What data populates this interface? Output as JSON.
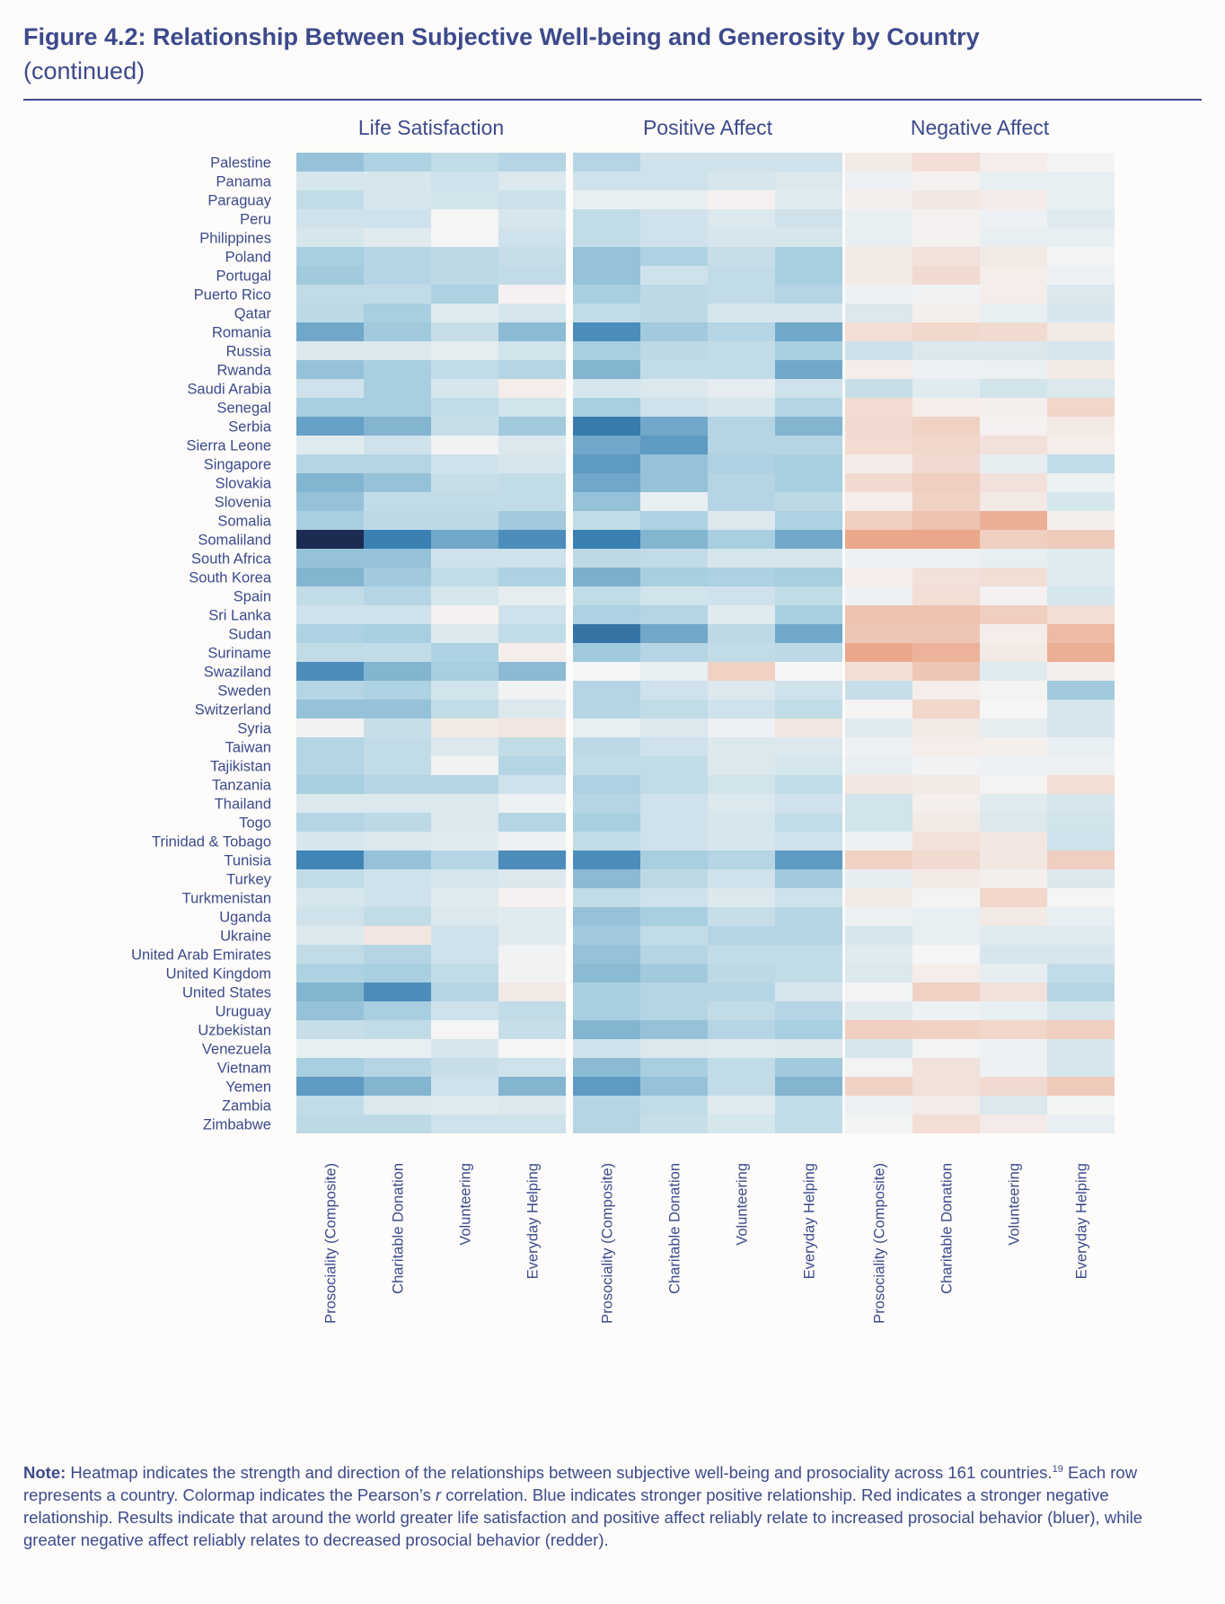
{
  "figure": {
    "title": "Figure 4.2: Relationship Between Subjective Well-being and Generosity by Country",
    "subtitle": "(continued)"
  },
  "note": {
    "label": "Note:",
    "text_1": " Heatmap indicates the strength and direction of the relationships between subjective well-being and prosociality across 161 countries.",
    "footnote_ref": "19",
    "text_2": " Each row represents a country. Colormap indicates the Pearson’s ",
    "r_symbol": "r",
    "text_3": " correlation. Blue indicates stronger positive relationship. Red indicates a stronger negative relationship. Results indicate that around the world greater life satisfaction and positive affect reliably relate to increased prosocial behavior (bluer), while greater negative affect reliably relates to decreased prosocial behavior (redder)."
  },
  "colors": {
    "text": "#3c4a8c",
    "negative_strong": "#e99d7d",
    "neutral": "#f5f5f5",
    "positive_strong": "#1c2b52",
    "positive_mid": "#3a80b3"
  },
  "chart_data": {
    "type": "heatmap",
    "value_meaning": "Pearson's r (blue = positive, red = negative)",
    "color_range": [
      -0.5,
      1.0
    ],
    "panels": [
      "Life Satisfaction",
      "Positive Affect",
      "Negative Affect"
    ],
    "columns": [
      "Prosociality (Composite)",
      "Charitable Donation",
      "Volunteering",
      "Everyday Helping"
    ],
    "rows": [
      "Palestine",
      "Panama",
      "Paraguay",
      "Peru",
      "Philippines",
      "Poland",
      "Portugal",
      "Puerto Rico",
      "Qatar",
      "Romania",
      "Russia",
      "Rwanda",
      "Saudi Arabia",
      "Senegal",
      "Serbia",
      "Sierra Leone",
      "Singapore",
      "Slovakia",
      "Slovenia",
      "Somalia",
      "Somaliland",
      "South Africa",
      "South Korea",
      "Spain",
      "Sri Lanka",
      "Sudan",
      "Suriname",
      "Swaziland",
      "Sweden",
      "Switzerland",
      "Syria",
      "Taiwan",
      "Tajikistan",
      "Tanzania",
      "Thailand",
      "Togo",
      "Trinidad & Tobago",
      "Tunisia",
      "Turkey",
      "Turkmenistan",
      "Uganda",
      "Ukraine",
      "United Arab Emirates",
      "United Kingdom",
      "United States",
      "Uruguay",
      "Uzbekistan",
      "Venezuela",
      "Vietnam",
      "Yemen",
      "Zambia",
      "Zimbabwe"
    ],
    "values": [
      [
        [
          0.35,
          0.28,
          0.2,
          0.25
        ],
        [
          0.25,
          0.15,
          0.15,
          0.15
        ],
        [
          -0.06,
          -0.12,
          -0.04,
          -0.01
        ]
      ],
      [
        [
          0.12,
          0.12,
          0.15,
          0.1
        ],
        [
          0.15,
          0.15,
          0.12,
          0.1
        ],
        [
          0.03,
          -0.02,
          0.05,
          0.05
        ]
      ],
      [
        [
          0.2,
          0.12,
          0.14,
          0.16
        ],
        [
          0.05,
          0.05,
          -0.02,
          0.08
        ],
        [
          -0.03,
          -0.07,
          -0.05,
          0.05
        ]
      ],
      [
        [
          0.15,
          0.15,
          0.0,
          0.12
        ],
        [
          0.2,
          0.15,
          0.1,
          0.15
        ],
        [
          0.05,
          -0.02,
          0.03,
          0.08
        ]
      ],
      [
        [
          0.12,
          0.08,
          0.0,
          0.15
        ],
        [
          0.2,
          0.15,
          0.12,
          0.12
        ],
        [
          0.05,
          -0.02,
          0.05,
          0.05
        ]
      ],
      [
        [
          0.3,
          0.25,
          0.22,
          0.18
        ],
        [
          0.35,
          0.28,
          0.18,
          0.3
        ],
        [
          -0.06,
          -0.1,
          -0.06,
          -0.01
        ]
      ],
      [
        [
          0.32,
          0.25,
          0.22,
          0.2
        ],
        [
          0.35,
          0.15,
          0.2,
          0.3
        ],
        [
          -0.06,
          -0.14,
          -0.04,
          0.03
        ]
      ],
      [
        [
          0.2,
          0.2,
          0.28,
          -0.02
        ],
        [
          0.3,
          0.22,
          0.2,
          0.25
        ],
        [
          0.03,
          0.02,
          -0.04,
          0.1
        ]
      ],
      [
        [
          0.22,
          0.3,
          0.08,
          0.12
        ],
        [
          0.2,
          0.22,
          0.12,
          0.12
        ],
        [
          0.1,
          -0.03,
          0.05,
          0.12
        ]
      ],
      [
        [
          0.45,
          0.32,
          0.18,
          0.38
        ],
        [
          0.55,
          0.32,
          0.25,
          0.45
        ],
        [
          -0.12,
          -0.15,
          -0.14,
          -0.06
        ]
      ],
      [
        [
          0.1,
          0.1,
          0.06,
          0.14
        ],
        [
          0.3,
          0.22,
          0.2,
          0.3
        ],
        [
          0.16,
          0.1,
          0.1,
          0.12
        ]
      ],
      [
        [
          0.35,
          0.3,
          0.2,
          0.25
        ],
        [
          0.4,
          0.2,
          0.2,
          0.45
        ],
        [
          -0.04,
          0.03,
          0.04,
          -0.06
        ]
      ],
      [
        [
          0.15,
          0.3,
          0.12,
          -0.04
        ],
        [
          0.12,
          0.1,
          0.06,
          0.15
        ],
        [
          0.18,
          0.08,
          0.14,
          0.1
        ]
      ],
      [
        [
          0.3,
          0.3,
          0.2,
          0.14
        ],
        [
          0.3,
          0.15,
          0.12,
          0.25
        ],
        [
          -0.13,
          -0.04,
          -0.03,
          -0.16
        ]
      ],
      [
        [
          0.48,
          0.4,
          0.18,
          0.32
        ],
        [
          0.62,
          0.45,
          0.25,
          0.4
        ],
        [
          -0.14,
          -0.18,
          -0.02,
          -0.06
        ]
      ],
      [
        [
          0.08,
          0.15,
          0.02,
          0.1
        ],
        [
          0.45,
          0.5,
          0.25,
          0.25
        ],
        [
          -0.13,
          -0.16,
          -0.1,
          -0.04
        ]
      ],
      [
        [
          0.25,
          0.25,
          0.15,
          0.12
        ],
        [
          0.5,
          0.35,
          0.28,
          0.3
        ],
        [
          -0.05,
          -0.14,
          0.06,
          0.2
        ]
      ],
      [
        [
          0.4,
          0.35,
          0.18,
          0.2
        ],
        [
          0.45,
          0.35,
          0.25,
          0.3
        ],
        [
          -0.14,
          -0.2,
          -0.1,
          0.03
        ]
      ],
      [
        [
          0.35,
          0.2,
          0.2,
          0.2
        ],
        [
          0.35,
          0.05,
          0.25,
          0.22
        ],
        [
          -0.04,
          -0.18,
          -0.06,
          0.12
        ]
      ],
      [
        [
          0.3,
          0.22,
          0.22,
          0.32
        ],
        [
          0.2,
          0.28,
          0.1,
          0.28
        ],
        [
          -0.2,
          -0.26,
          -0.36,
          -0.03
        ]
      ],
      [
        [
          0.95,
          0.6,
          0.45,
          0.55
        ],
        [
          0.6,
          0.4,
          0.3,
          0.45
        ],
        [
          -0.4,
          -0.4,
          -0.2,
          -0.22
        ]
      ],
      [
        [
          0.35,
          0.35,
          0.15,
          0.15
        ],
        [
          0.22,
          0.2,
          0.12,
          0.12
        ],
        [
          0.03,
          0.03,
          0.05,
          0.08
        ]
      ],
      [
        [
          0.4,
          0.32,
          0.2,
          0.28
        ],
        [
          0.42,
          0.3,
          0.28,
          0.3
        ],
        [
          -0.04,
          -0.1,
          -0.12,
          0.08
        ]
      ],
      [
        [
          0.2,
          0.25,
          0.12,
          0.06
        ],
        [
          0.2,
          0.14,
          0.15,
          0.2
        ],
        [
          0.03,
          -0.12,
          -0.02,
          0.12
        ]
      ],
      [
        [
          0.15,
          0.15,
          -0.02,
          0.15
        ],
        [
          0.28,
          0.25,
          0.08,
          0.3
        ],
        [
          -0.26,
          -0.26,
          -0.2,
          -0.12
        ]
      ],
      [
        [
          0.28,
          0.3,
          0.1,
          0.2
        ],
        [
          0.65,
          0.45,
          0.22,
          0.45
        ],
        [
          -0.24,
          -0.24,
          -0.04,
          -0.3
        ]
      ],
      [
        [
          0.2,
          0.2,
          0.28,
          -0.04
        ],
        [
          0.32,
          0.25,
          0.2,
          0.22
        ],
        [
          -0.4,
          -0.34,
          -0.06,
          -0.36
        ]
      ],
      [
        [
          0.55,
          0.4,
          0.3,
          0.38
        ],
        [
          0.0,
          0.05,
          -0.18,
          0.0
        ],
        [
          -0.12,
          -0.24,
          0.08,
          -0.03
        ]
      ],
      [
        [
          0.25,
          0.28,
          0.14,
          0.02
        ],
        [
          0.25,
          0.15,
          0.1,
          0.15
        ],
        [
          0.18,
          -0.04,
          -0.01,
          0.32
        ]
      ],
      [
        [
          0.35,
          0.35,
          0.2,
          0.1
        ],
        [
          0.25,
          0.2,
          0.15,
          0.2
        ],
        [
          -0.01,
          -0.16,
          0.0,
          0.12
        ]
      ],
      [
        [
          0.02,
          0.18,
          -0.06,
          -0.08
        ],
        [
          0.05,
          0.1,
          0.03,
          -0.08
        ],
        [
          0.08,
          -0.06,
          0.06,
          0.12
        ]
      ],
      [
        [
          0.25,
          0.2,
          0.1,
          0.2
        ],
        [
          0.22,
          0.15,
          0.1,
          0.1
        ],
        [
          0.03,
          -0.04,
          -0.03,
          0.05
        ]
      ],
      [
        [
          0.25,
          0.2,
          0.02,
          0.25
        ],
        [
          0.2,
          0.2,
          0.1,
          0.12
        ],
        [
          0.05,
          0.02,
          0.03,
          0.03
        ]
      ],
      [
        [
          0.3,
          0.25,
          0.25,
          0.15
        ],
        [
          0.28,
          0.2,
          0.14,
          0.2
        ],
        [
          -0.08,
          -0.06,
          -0.01,
          -0.12
        ]
      ],
      [
        [
          0.1,
          0.1,
          0.1,
          0.03
        ],
        [
          0.25,
          0.15,
          0.1,
          0.15
        ],
        [
          0.14,
          -0.03,
          0.08,
          0.12
        ]
      ],
      [
        [
          0.25,
          0.22,
          0.1,
          0.25
        ],
        [
          0.3,
          0.15,
          0.12,
          0.2
        ],
        [
          0.14,
          -0.06,
          0.1,
          0.14
        ]
      ],
      [
        [
          0.12,
          0.1,
          0.08,
          0.03
        ],
        [
          0.2,
          0.15,
          0.12,
          0.15
        ],
        [
          0.03,
          -0.1,
          -0.07,
          0.15
        ]
      ],
      [
        [
          0.58,
          0.35,
          0.25,
          0.55
        ],
        [
          0.55,
          0.3,
          0.25,
          0.5
        ],
        [
          -0.18,
          -0.14,
          -0.07,
          -0.2
        ]
      ],
      [
        [
          0.2,
          0.15,
          0.12,
          0.1
        ],
        [
          0.38,
          0.22,
          0.15,
          0.32
        ],
        [
          0.06,
          -0.06,
          -0.03,
          0.1
        ]
      ],
      [
        [
          0.12,
          0.15,
          0.08,
          -0.02
        ],
        [
          0.2,
          0.15,
          0.1,
          0.15
        ],
        [
          -0.06,
          0.01,
          -0.16,
          0.0
        ]
      ],
      [
        [
          0.15,
          0.2,
          0.1,
          0.08
        ],
        [
          0.35,
          0.3,
          0.18,
          0.25
        ],
        [
          0.03,
          0.05,
          -0.06,
          0.05
        ]
      ],
      [
        [
          0.1,
          -0.08,
          0.15,
          0.08
        ],
        [
          0.32,
          0.2,
          0.25,
          0.25
        ],
        [
          0.12,
          0.05,
          0.08,
          0.08
        ]
      ],
      [
        [
          0.2,
          0.25,
          0.15,
          0.02
        ],
        [
          0.35,
          0.25,
          0.2,
          0.2
        ],
        [
          0.08,
          0.0,
          0.12,
          0.12
        ]
      ],
      [
        [
          0.28,
          0.3,
          0.2,
          0.02
        ],
        [
          0.38,
          0.32,
          0.22,
          0.2
        ],
        [
          0.1,
          -0.04,
          0.06,
          0.2
        ]
      ],
      [
        [
          0.4,
          0.55,
          0.25,
          -0.06
        ],
        [
          0.3,
          0.25,
          0.25,
          0.12
        ],
        [
          0.01,
          -0.18,
          -0.1,
          0.25
        ]
      ],
      [
        [
          0.35,
          0.3,
          0.15,
          0.2
        ],
        [
          0.3,
          0.25,
          0.2,
          0.25
        ],
        [
          0.08,
          0.03,
          0.05,
          0.12
        ]
      ],
      [
        [
          0.18,
          0.2,
          0.0,
          0.18
        ],
        [
          0.4,
          0.35,
          0.25,
          0.3
        ],
        [
          -0.2,
          -0.18,
          -0.16,
          -0.2
        ]
      ],
      [
        [
          0.05,
          0.05,
          0.12,
          0.0
        ],
        [
          0.15,
          0.1,
          0.08,
          0.1
        ],
        [
          0.12,
          0.01,
          0.03,
          0.12
        ]
      ],
      [
        [
          0.3,
          0.25,
          0.18,
          0.15
        ],
        [
          0.38,
          0.3,
          0.2,
          0.32
        ],
        [
          0.01,
          -0.1,
          0.03,
          0.12
        ]
      ],
      [
        [
          0.5,
          0.4,
          0.15,
          0.4
        ],
        [
          0.5,
          0.35,
          0.2,
          0.4
        ],
        [
          -0.18,
          -0.1,
          -0.14,
          -0.22
        ]
      ],
      [
        [
          0.2,
          0.1,
          0.08,
          0.1
        ],
        [
          0.25,
          0.2,
          0.08,
          0.2
        ],
        [
          0.04,
          -0.05,
          0.1,
          0.01
        ]
      ],
      [
        [
          0.22,
          0.22,
          0.15,
          0.15
        ],
        [
          0.25,
          0.18,
          0.12,
          0.2
        ],
        [
          0.01,
          -0.12,
          -0.05,
          0.05
        ]
      ]
    ]
  }
}
